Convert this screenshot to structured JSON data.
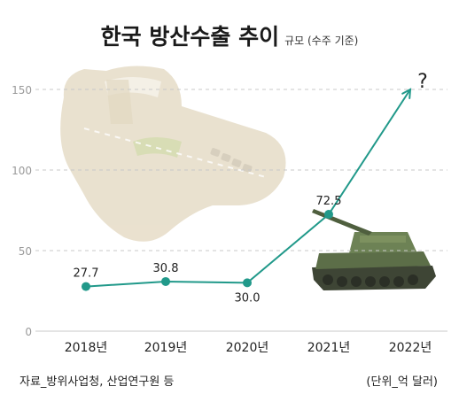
{
  "title": "한국 방산수출 추이",
  "subtitle": "규모 (수주 기준)",
  "source_note": "자료_방위사업청, 산업연구원 등",
  "unit_note": "(단위_억 달러)",
  "colors": {
    "line": "#21998a",
    "point": "#21998a",
    "grid": "#c8c8c8",
    "tick": "#9a9a9a",
    "text": "#222222"
  },
  "chart_data": {
    "type": "line",
    "title": "한국 방산수출 추이",
    "subtitle": "규모 (수주 기준)",
    "xlabel": "",
    "ylabel": "",
    "unit": "억 달러",
    "categories": [
      "2018년",
      "2019년",
      "2020년",
      "2021년",
      "2022년"
    ],
    "values": [
      27.7,
      30.8,
      30.0,
      72.5,
      150
    ],
    "point_labels": [
      "27.7",
      "30.8",
      "30.0",
      "72.5",
      "?"
    ],
    "yticks": [
      0,
      50,
      100,
      150
    ],
    "ylim": [
      0,
      160
    ],
    "grid": true,
    "legend": "none"
  }
}
